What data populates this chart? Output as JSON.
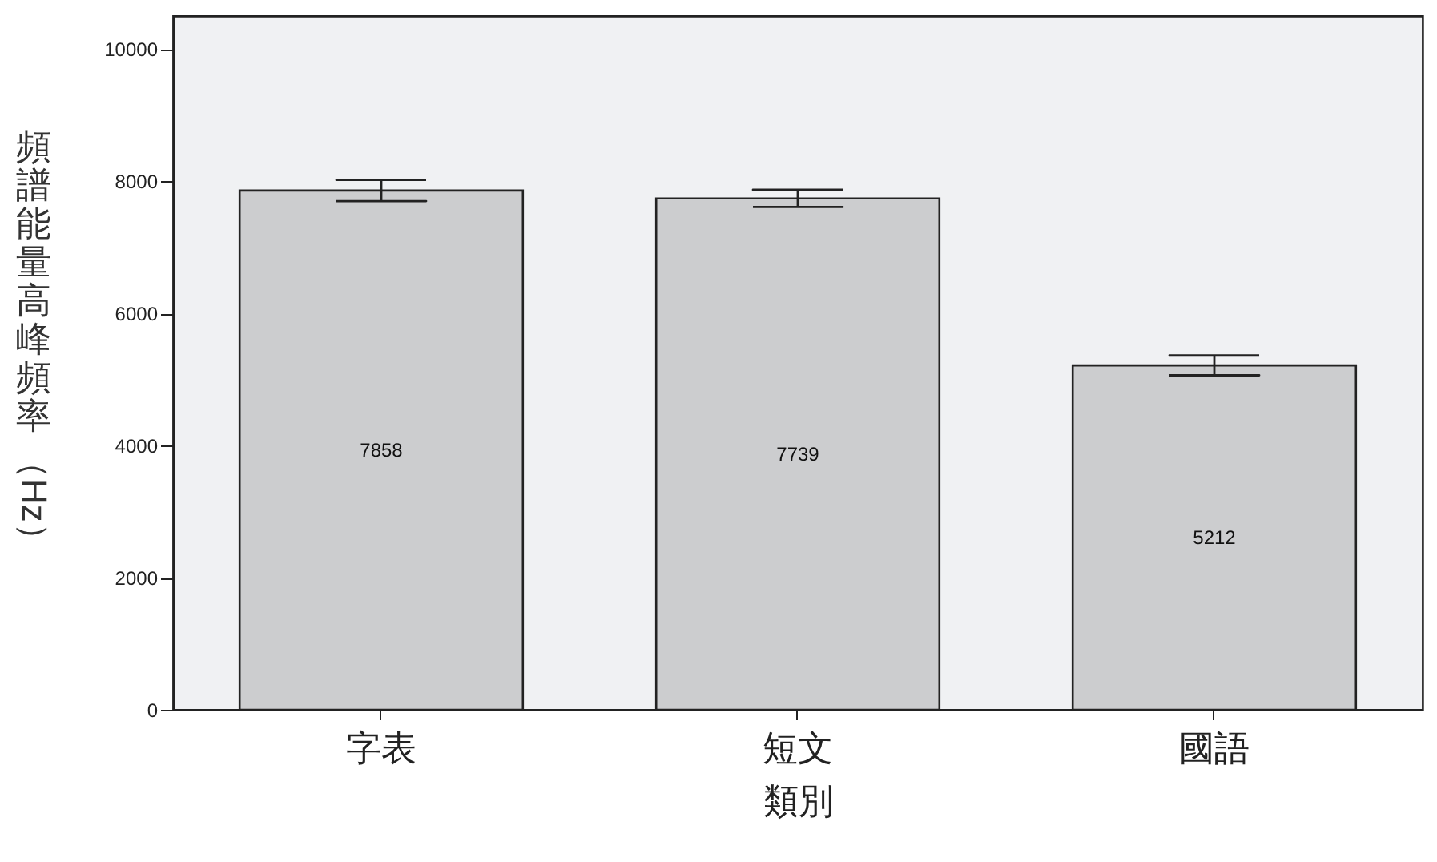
{
  "chart_data": {
    "type": "bar",
    "xlabel": "類別",
    "ylabel": "頻譜能量高峰頻率（Hz）",
    "categories": [
      "字表",
      "短文",
      "國語"
    ],
    "values": [
      7858,
      7739,
      5212
    ],
    "errors": [
      160,
      130,
      150
    ],
    "color": "#cccdcf",
    "data_labels": true,
    "ylim": [
      0,
      10500
    ],
    "yticks": [
      0,
      2000,
      4000,
      6000,
      8000,
      10000
    ],
    "grid": false
  }
}
